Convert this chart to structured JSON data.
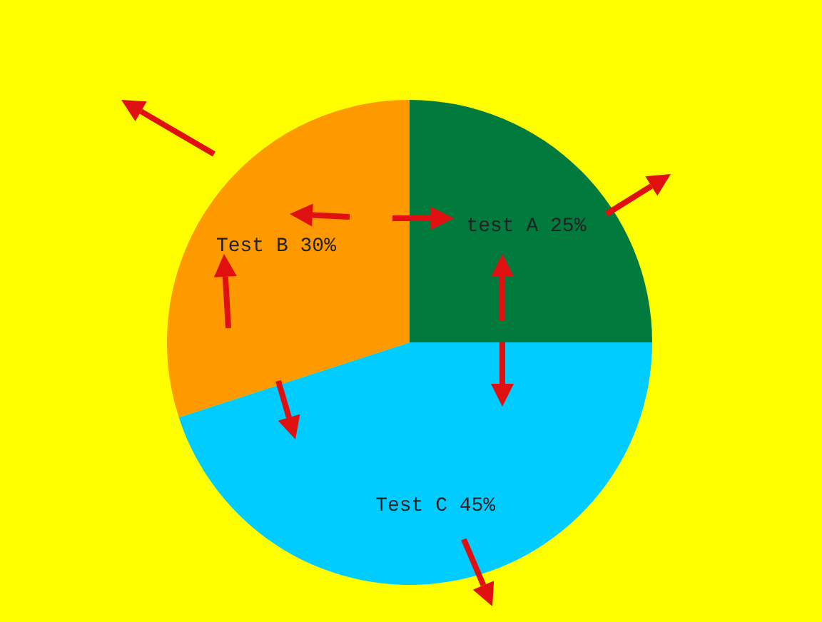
{
  "chart_data": {
    "type": "pie",
    "categories": [
      "test A",
      "Test C",
      "Test B"
    ],
    "values": [
      25,
      45,
      30
    ],
    "colors": [
      "#007a3d",
      "#00ccff",
      "#ff9900"
    ],
    "value_labels": [
      "25%",
      "45%",
      "30%"
    ]
  }
}
